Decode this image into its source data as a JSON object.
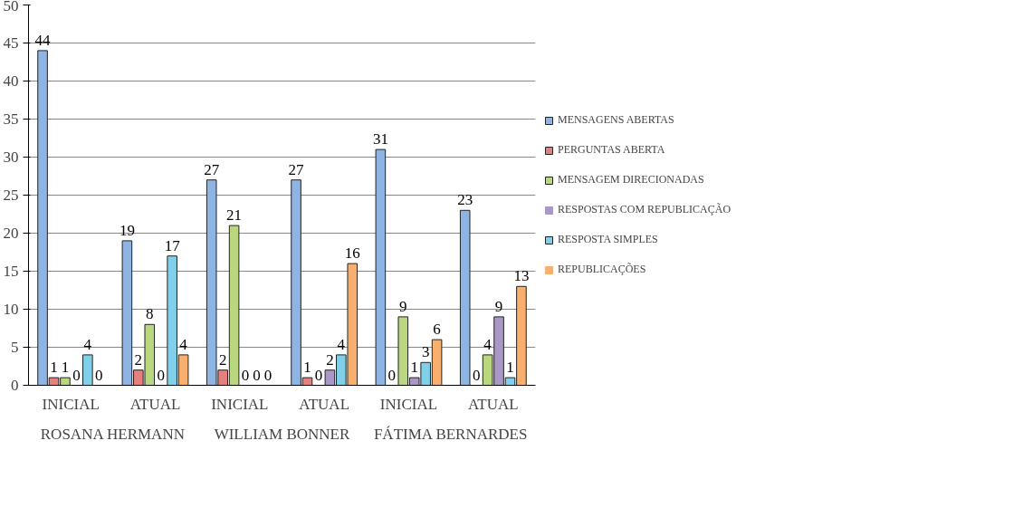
{
  "chart_data": {
    "type": "bar",
    "categories": [
      "INICIAL",
      "ATUAL",
      "INICIAL",
      "ATUAL",
      "INICIAL",
      "ATUAL"
    ],
    "annotations": [
      "ROSANA HERMANN",
      "WILLIAM BONNER",
      "FÁTIMA BERNARDES"
    ],
    "series": [
      {
        "name": "MENSAGENS ABERTAS",
        "color": "#8eb4e3",
        "values": [
          44,
          19,
          27,
          27,
          31,
          23
        ]
      },
      {
        "name": "PERGUNTAS ABERTA",
        "color": "#e6807e",
        "values": [
          1,
          2,
          2,
          1,
          0,
          0
        ]
      },
      {
        "name": "MENSAGEM DIRECIONADAS",
        "color": "#b9d77f",
        "values": [
          1,
          8,
          21,
          0,
          9,
          4
        ]
      },
      {
        "name": "RESPOSTAS COM REPUBLICAÇÃO",
        "color": "#a998c5",
        "values": [
          0,
          0,
          0,
          2,
          1,
          9
        ]
      },
      {
        "name": "RESPOSTA SIMPLES",
        "color": "#7fd0e8",
        "values": [
          4,
          17,
          0,
          4,
          3,
          1
        ]
      },
      {
        "name": "REPUBLICAÇÕES",
        "color": "#f9b06e",
        "values": [
          0,
          4,
          0,
          16,
          6,
          13
        ]
      }
    ],
    "ylim": [
      0,
      50
    ],
    "yticks": [
      0,
      5,
      10,
      15,
      20,
      25,
      30,
      35,
      40,
      45,
      50
    ],
    "grid": "y",
    "legend": "right",
    "data_labels": true
  }
}
